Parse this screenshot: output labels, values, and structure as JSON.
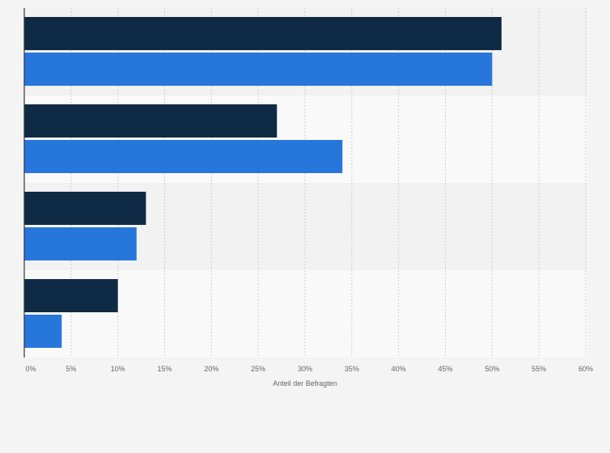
{
  "chart_data": {
    "type": "bar",
    "orientation": "horizontal",
    "title": "",
    "xlabel": "Anteil der Befragten",
    "ylabel": "",
    "xlim": [
      0,
      60
    ],
    "x_ticks": [
      0,
      5,
      10,
      15,
      20,
      25,
      30,
      35,
      40,
      45,
      50,
      55,
      60
    ],
    "x_tick_labels": [
      "0%",
      "5%",
      "10%",
      "15%",
      "20%",
      "25%",
      "30%",
      "35%",
      "40%",
      "45%",
      "50%",
      "55%",
      "60%"
    ],
    "categories": [
      "",
      "",
      "",
      ""
    ],
    "series": [
      {
        "color": "#0f2a44",
        "values": [
          51,
          27,
          13,
          10
        ]
      },
      {
        "color": "#2776dc",
        "values": [
          50,
          34,
          12,
          4
        ]
      }
    ],
    "grid": "vertical dashed",
    "legend": "none",
    "band_colors": [
      "#f2f2f2",
      "#f9f9f9"
    ]
  }
}
